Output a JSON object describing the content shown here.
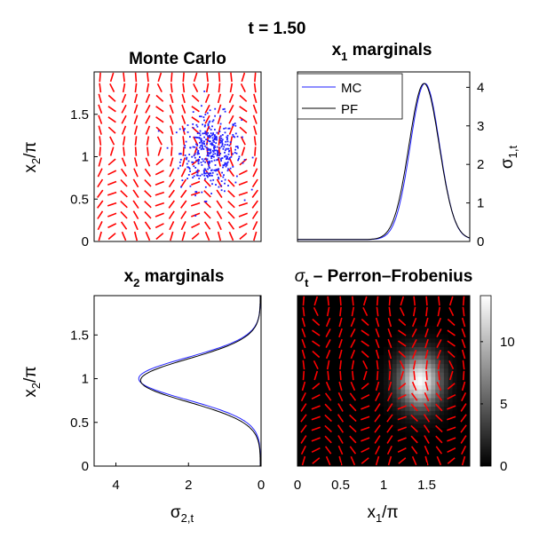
{
  "figure": {
    "suptitle": "t = 1.50"
  },
  "chart_data": [
    {
      "id": "monte-carlo",
      "type": "scatter",
      "title": "Monte Carlo",
      "xlim": [
        0,
        2
      ],
      "ylim": [
        0,
        2
      ],
      "ylabel": "x_2/π",
      "yticks": [
        "0",
        "0.5",
        "1",
        "1.5"
      ],
      "yticks_values": [
        0,
        0.5,
        1,
        1.5
      ],
      "xticks": [],
      "particles": {
        "color": "#1f1fff",
        "count": 400,
        "center": [
          1.4,
          1.05
        ],
        "spread": [
          0.18,
          0.22
        ]
      },
      "vector_field": {
        "color": "#ff0000",
        "description_rows": 16,
        "description_cols": 14
      }
    },
    {
      "id": "x1-marginals",
      "type": "line",
      "title": "x_1 marginals",
      "xlim": [
        0,
        2
      ],
      "ylim": [
        0,
        4.4
      ],
      "ylabel": "σ_1,t",
      "yticks": [
        "0",
        "1",
        "2",
        "3",
        "4"
      ],
      "yticks_values": [
        0,
        1,
        2,
        3,
        4
      ],
      "y_axis_location": "right",
      "legend": {
        "position": "top-left",
        "entries": [
          "MC",
          "PF"
        ]
      },
      "series": [
        {
          "name": "MC",
          "color": "#1f1fff",
          "peak_x": 1.48,
          "peak_y": 4.05,
          "sigma": 0.17
        },
        {
          "name": "PF",
          "color": "#000000",
          "peak_x": 1.47,
          "peak_y": 4.05,
          "sigma": 0.175
        }
      ]
    },
    {
      "id": "x2-marginals",
      "type": "line",
      "title": "x_2 marginals",
      "xlim": [
        4.6,
        0
      ],
      "ylim": [
        0,
        1.95
      ],
      "xlabel": "σ_2,t",
      "ylabel": "x_2/π",
      "xticks": [
        "4",
        "2",
        "0"
      ],
      "xticks_values": [
        4,
        2,
        0
      ],
      "yticks": [
        "0",
        "0.5",
        "1",
        "1.5"
      ],
      "yticks_values": [
        0,
        0.5,
        1,
        1.5
      ],
      "series": [
        {
          "name": "MC",
          "color": "#1f1fff",
          "peak_y": 1.0,
          "peak_x": 3.35,
          "sigma": 0.24
        },
        {
          "name": "PF",
          "color": "#000000",
          "peak_y": 0.98,
          "peak_x": 3.3,
          "sigma": 0.245
        }
      ]
    },
    {
      "id": "perron-frobenius",
      "type": "heatmap",
      "title": "σ_t – Perron–Frobenius",
      "xlim": [
        0,
        2
      ],
      "ylim": [
        0,
        2
      ],
      "xlabel": "x_1/π",
      "xticks": [
        "0",
        "0.5",
        "1",
        "1.5"
      ],
      "xticks_values": [
        0,
        0.5,
        1,
        1.5
      ],
      "colorbar": {
        "ticks": [
          "0",
          "5",
          "10"
        ],
        "values": [
          0,
          5,
          10
        ],
        "max": 13.7
      },
      "density": {
        "center": [
          1.42,
          1.0
        ],
        "spread": [
          0.17,
          0.22
        ],
        "peak": 13.5
      }
    }
  ]
}
